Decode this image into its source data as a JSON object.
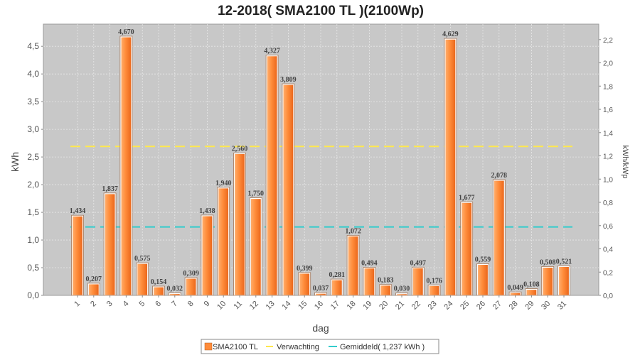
{
  "chart_data": {
    "type": "bar",
    "title": "12-2018( SMA2100 TL )(2100Wp)",
    "xlabel": "dag",
    "ylabel": "kWh",
    "ylabel_right": "kWh/kWp",
    "ylim": [
      0,
      4.9
    ],
    "ylim_right": [
      0,
      2.333
    ],
    "yticks": [
      "0,0",
      "0,5",
      "1,0",
      "1,5",
      "2,0",
      "2,5",
      "3,0",
      "3,5",
      "4,0",
      "4,5"
    ],
    "yticks_right": [
      "0,0",
      "0,2",
      "0,4",
      "0,6",
      "0,8",
      "1,0",
      "1,2",
      "1,4",
      "1,6",
      "1,8",
      "2,0",
      "2,2"
    ],
    "categories": [
      "1",
      "2",
      "3",
      "4",
      "5",
      "6",
      "7",
      "8",
      "9",
      "10",
      "11",
      "12",
      "13",
      "14",
      "15",
      "16",
      "17",
      "18",
      "19",
      "20",
      "21",
      "22",
      "23",
      "24",
      "25",
      "26",
      "27",
      "28",
      "29",
      "30",
      "31"
    ],
    "series": [
      {
        "name": "SMA2100 TL",
        "type": "bar",
        "color": "#ff8c3a",
        "values": [
          1.434,
          0.207,
          1.837,
          4.67,
          0.575,
          0.154,
          0.032,
          0.309,
          1.438,
          1.94,
          2.56,
          1.75,
          4.327,
          3.809,
          0.399,
          0.037,
          0.281,
          1.072,
          0.494,
          0.183,
          0.03,
          0.497,
          0.176,
          4.629,
          1.677,
          0.559,
          2.078,
          0.049,
          0.108,
          0.508,
          0.521
        ],
        "labels": [
          "1,434",
          "0,207",
          "1,837",
          "4,670",
          "0,575",
          "0,154",
          "0,032",
          "0,309",
          "1,438",
          "1,940",
          "2,560",
          "1,750",
          "4,327",
          "3,809",
          "0,399",
          "0,037",
          "0,281",
          "1,072",
          "0,494",
          "0,183",
          "0,030",
          "0,497",
          "0,176",
          "4,629",
          "1,677",
          "0,559",
          "2,078",
          "0,049",
          "0,108",
          "0,508",
          "0,521"
        ]
      },
      {
        "name": "Verwachting",
        "type": "line",
        "color": "#ffe84d",
        "value": 2.69
      },
      {
        "name": "Gemiddeld( 1,237 kWh )",
        "type": "line",
        "color": "#33cccc",
        "value": 1.237
      }
    ],
    "legend": [
      "SMA2100 TL",
      "Verwachting",
      "Gemiddeld( 1,237 kWh )"
    ],
    "legend_position": "bottom",
    "grid": true
  }
}
